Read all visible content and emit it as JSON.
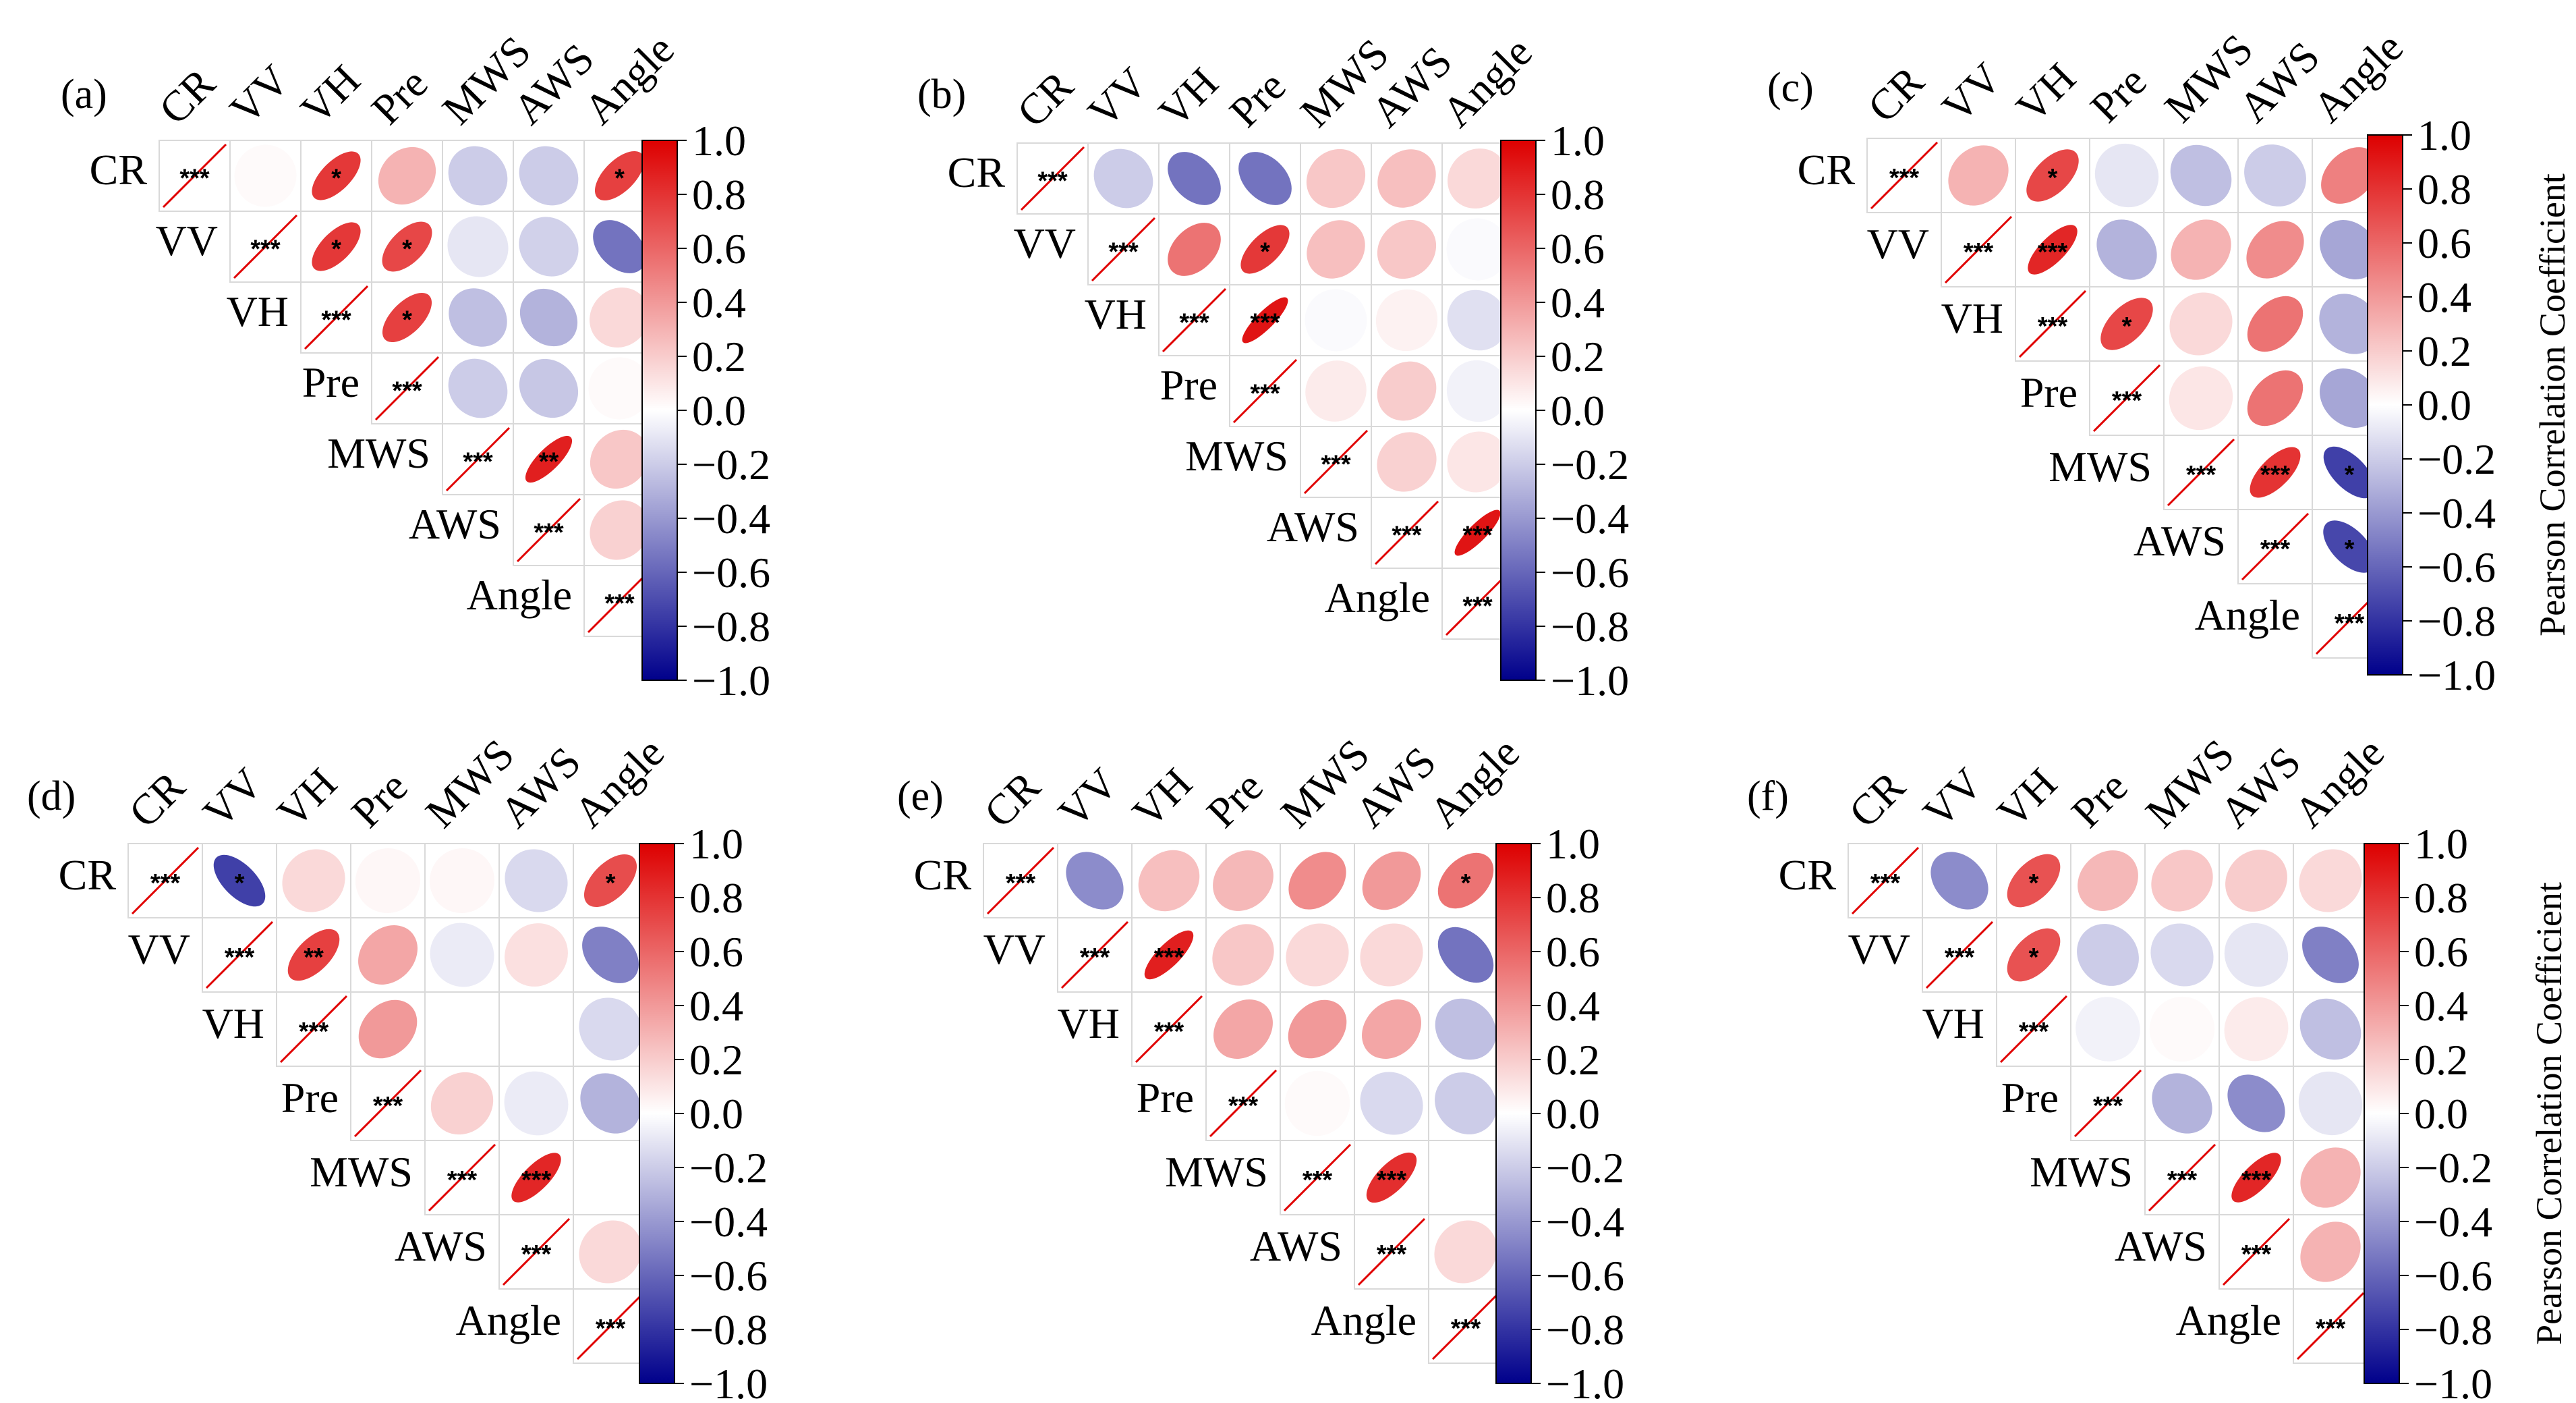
{
  "chart_data": [
    {
      "type": "correlation-ellipse-matrix",
      "panel": "(a)",
      "variables": [
        "CR",
        "VV",
        "VH",
        "Pre",
        "MWS",
        "AWS",
        "Angle"
      ],
      "colorbar": {
        "min": -1.0,
        "max": 1.0,
        "ticks": [
          "1.0",
          "0.8",
          "0.6",
          "0.4",
          "0.2",
          "0.0",
          "−0.2",
          "−0.4",
          "−0.6",
          "−0.8",
          "−1.0"
        ],
        "title": ""
      },
      "matrix": [
        [
          1,
          0.02,
          0.78,
          0.3,
          -0.2,
          -0.2,
          0.75
        ],
        [
          null,
          1,
          0.78,
          0.72,
          -0.1,
          -0.18,
          -0.55
        ],
        [
          null,
          null,
          1,
          0.75,
          -0.25,
          -0.3,
          0.15
        ],
        [
          null,
          null,
          null,
          1,
          -0.2,
          -0.22,
          0.02
        ],
        [
          null,
          null,
          null,
          null,
          1,
          0.88,
          0.22
        ],
        [
          null,
          null,
          null,
          null,
          null,
          1,
          0.18
        ],
        [
          null,
          null,
          null,
          null,
          null,
          null,
          1
        ]
      ],
      "significance": [
        [
          "***",
          "",
          "*",
          "",
          "",
          "",
          "*"
        ],
        [
          "",
          "***",
          "*",
          "*",
          "",
          "",
          ""
        ],
        [
          "",
          "",
          "***",
          "*",
          "",
          "",
          ""
        ],
        [
          "",
          "",
          "",
          "***",
          "",
          "",
          ""
        ],
        [
          "",
          "",
          "",
          "",
          "***",
          "**",
          ""
        ],
        [
          "",
          "",
          "",
          "",
          "",
          "***",
          ""
        ],
        [
          "",
          "",
          "",
          "",
          "",
          "",
          "***"
        ]
      ]
    },
    {
      "type": "correlation-ellipse-matrix",
      "panel": "(b)",
      "variables": [
        "CR",
        "VV",
        "VH",
        "Pre",
        "MWS",
        "AWS",
        "Angle"
      ],
      "colorbar": {
        "min": -1.0,
        "max": 1.0,
        "ticks": [
          "1.0",
          "0.8",
          "0.6",
          "0.4",
          "0.2",
          "0.0",
          "−0.2",
          "−0.4",
          "−0.6",
          "−0.8",
          "−1.0"
        ],
        "title": ""
      },
      "matrix": [
        [
          1,
          -0.2,
          -0.55,
          -0.55,
          0.22,
          0.25,
          0.15
        ],
        [
          null,
          1,
          0.55,
          0.78,
          0.25,
          0.22,
          -0.02
        ],
        [
          null,
          null,
          1,
          0.92,
          -0.02,
          0.05,
          -0.12
        ],
        [
          null,
          null,
          null,
          1,
          0.08,
          0.2,
          -0.05
        ],
        [
          null,
          null,
          null,
          null,
          1,
          0.18,
          0.1
        ],
        [
          null,
          null,
          null,
          null,
          null,
          1,
          0.92
        ],
        [
          null,
          null,
          null,
          null,
          null,
          null,
          1
        ]
      ],
      "significance": [
        [
          "***",
          "",
          "",
          "",
          "",
          "",
          ""
        ],
        [
          "",
          "***",
          "",
          "*",
          "",
          "",
          ""
        ],
        [
          "",
          "",
          "***",
          "***",
          "",
          "",
          ""
        ],
        [
          "",
          "",
          "",
          "***",
          "",
          "",
          ""
        ],
        [
          "",
          "",
          "",
          "",
          "***",
          "",
          ""
        ],
        [
          "",
          "",
          "",
          "",
          "",
          "***",
          "***"
        ],
        [
          "",
          "",
          "",
          "",
          "",
          "",
          "***"
        ]
      ]
    },
    {
      "type": "correlation-ellipse-matrix",
      "panel": "(c)",
      "variables": [
        "CR",
        "VV",
        "VH",
        "Pre",
        "MWS",
        "AWS",
        "Angle"
      ],
      "colorbar": {
        "min": -1.0,
        "max": 1.0,
        "ticks": [
          "1.0",
          "0.8",
          "0.6",
          "0.4",
          "0.2",
          "0.0",
          "−0.2",
          "−0.4",
          "−0.6",
          "−0.8",
          "−1.0"
        ],
        "title": "Pearson Correlation Coefficient"
      },
      "matrix": [
        [
          1,
          0.3,
          0.72,
          -0.1,
          -0.25,
          -0.2,
          0.5
        ],
        [
          null,
          1,
          0.85,
          -0.3,
          0.3,
          0.45,
          -0.35
        ],
        [
          null,
          null,
          1,
          0.72,
          0.15,
          0.55,
          -0.3
        ],
        [
          null,
          null,
          null,
          1,
          0.1,
          0.55,
          -0.35
        ],
        [
          null,
          null,
          null,
          null,
          1,
          0.8,
          -0.75
        ],
        [
          null,
          null,
          null,
          null,
          null,
          1,
          -0.72
        ],
        [
          null,
          null,
          null,
          null,
          null,
          null,
          1
        ]
      ],
      "significance": [
        [
          "***",
          "",
          "*",
          "",
          "",
          "",
          ""
        ],
        [
          "",
          "***",
          "***",
          "",
          "",
          "",
          ""
        ],
        [
          "",
          "",
          "***",
          "*",
          "",
          "",
          ""
        ],
        [
          "",
          "",
          "",
          "***",
          "",
          "",
          ""
        ],
        [
          "",
          "",
          "",
          "",
          "***",
          "***",
          "*"
        ],
        [
          "",
          "",
          "",
          "",
          "",
          "***",
          "*"
        ],
        [
          "",
          "",
          "",
          "",
          "",
          "",
          "***"
        ]
      ]
    },
    {
      "type": "correlation-ellipse-matrix",
      "panel": "(d)",
      "variables": [
        "CR",
        "VV",
        "VH",
        "Pre",
        "MWS",
        "AWS",
        "Angle"
      ],
      "colorbar": {
        "min": -1.0,
        "max": 1.0,
        "ticks": [
          "1.0",
          "0.8",
          "0.6",
          "0.4",
          "0.2",
          "0.0",
          "−0.2",
          "−0.4",
          "−0.6",
          "−0.8",
          "−1.0"
        ],
        "title": ""
      },
      "matrix": [
        [
          1,
          -0.75,
          0.15,
          0.03,
          0.03,
          -0.15,
          0.7
        ],
        [
          null,
          1,
          0.75,
          0.35,
          -0.08,
          0.12,
          -0.5
        ],
        [
          null,
          null,
          1,
          0.4,
          0.0,
          0.0,
          -0.15
        ],
        [
          null,
          null,
          null,
          1,
          0.18,
          -0.08,
          -0.3
        ],
        [
          null,
          null,
          null,
          null,
          1,
          0.85,
          0.0
        ],
        [
          null,
          null,
          null,
          null,
          null,
          1,
          0.15
        ],
        [
          null,
          null,
          null,
          null,
          null,
          null,
          1
        ]
      ],
      "significance": [
        [
          "***",
          "*",
          "",
          "",
          "",
          "",
          "*"
        ],
        [
          "",
          "***",
          "**",
          "",
          "",
          "",
          ""
        ],
        [
          "",
          "",
          "***",
          "",
          "",
          "",
          ""
        ],
        [
          "",
          "",
          "",
          "***",
          "",
          "",
          ""
        ],
        [
          "",
          "",
          "",
          "",
          "***",
          "***",
          ""
        ],
        [
          "",
          "",
          "",
          "",
          "",
          "***",
          ""
        ],
        [
          "",
          "",
          "",
          "",
          "",
          "",
          "***"
        ]
      ]
    },
    {
      "type": "correlation-ellipse-matrix",
      "panel": "(e)",
      "variables": [
        "CR",
        "VV",
        "VH",
        "Pre",
        "MWS",
        "AWS",
        "Angle"
      ],
      "colorbar": {
        "min": -1.0,
        "max": 1.0,
        "ticks": [
          "1.0",
          "0.8",
          "0.6",
          "0.4",
          "0.2",
          "0.0",
          "−0.2",
          "−0.4",
          "−0.6",
          "−0.8",
          "−1.0"
        ],
        "title": ""
      },
      "matrix": [
        [
          1,
          -0.45,
          0.25,
          0.28,
          0.45,
          0.4,
          0.55
        ],
        [
          null,
          1,
          0.88,
          0.22,
          0.15,
          0.15,
          -0.55
        ],
        [
          null,
          null,
          1,
          0.35,
          0.4,
          0.35,
          -0.25
        ],
        [
          null,
          null,
          null,
          1,
          0.02,
          -0.15,
          -0.2
        ],
        [
          null,
          null,
          null,
          null,
          1,
          0.82,
          0.0
        ],
        [
          null,
          null,
          null,
          null,
          null,
          1,
          0.15
        ],
        [
          null,
          null,
          null,
          null,
          null,
          null,
          1
        ]
      ],
      "significance": [
        [
          "***",
          "",
          "",
          "",
          "",
          "",
          "*"
        ],
        [
          "",
          "***",
          "***",
          "",
          "",
          "",
          ""
        ],
        [
          "",
          "",
          "***",
          "",
          "",
          "",
          ""
        ],
        [
          "",
          "",
          "",
          "***",
          "",
          "",
          ""
        ],
        [
          "",
          "",
          "",
          "",
          "***",
          "***",
          ""
        ],
        [
          "",
          "",
          "",
          "",
          "",
          "***",
          ""
        ],
        [
          "",
          "",
          "",
          "",
          "",
          "",
          "***"
        ]
      ]
    },
    {
      "type": "correlation-ellipse-matrix",
      "panel": "(f)",
      "variables": [
        "CR",
        "VV",
        "VH",
        "Pre",
        "MWS",
        "AWS",
        "Angle"
      ],
      "colorbar": {
        "min": -1.0,
        "max": 1.0,
        "ticks": [
          "1.0",
          "0.8",
          "0.6",
          "0.4",
          "0.2",
          "0.0",
          "−0.2",
          "−0.4",
          "−0.6",
          "−0.8",
          "−1.0"
        ],
        "title": "Pearson Correlation Coefficient"
      },
      "matrix": [
        [
          1,
          -0.45,
          0.68,
          0.28,
          0.22,
          0.2,
          0.15
        ],
        [
          null,
          1,
          0.68,
          -0.2,
          -0.15,
          -0.1,
          -0.5
        ],
        [
          null,
          null,
          1,
          -0.05,
          0.02,
          0.08,
          -0.25
        ],
        [
          null,
          null,
          null,
          1,
          -0.3,
          -0.45,
          -0.1
        ],
        [
          null,
          null,
          null,
          null,
          1,
          0.85,
          0.3
        ],
        [
          null,
          null,
          null,
          null,
          null,
          1,
          0.3
        ],
        [
          null,
          null,
          null,
          null,
          null,
          null,
          1
        ]
      ],
      "significance": [
        [
          "***",
          "",
          "*",
          "",
          "",
          "",
          ""
        ],
        [
          "",
          "***",
          "*",
          "",
          "",
          "",
          ""
        ],
        [
          "",
          "",
          "***",
          "",
          "",
          "",
          ""
        ],
        [
          "",
          "",
          "",
          "***",
          "",
          "",
          ""
        ],
        [
          "",
          "",
          "",
          "",
          "***",
          "***",
          ""
        ],
        [
          "",
          "",
          "",
          "",
          "",
          "***",
          ""
        ],
        [
          "",
          "",
          "",
          "",
          "",
          "",
          "***"
        ]
      ]
    }
  ]
}
